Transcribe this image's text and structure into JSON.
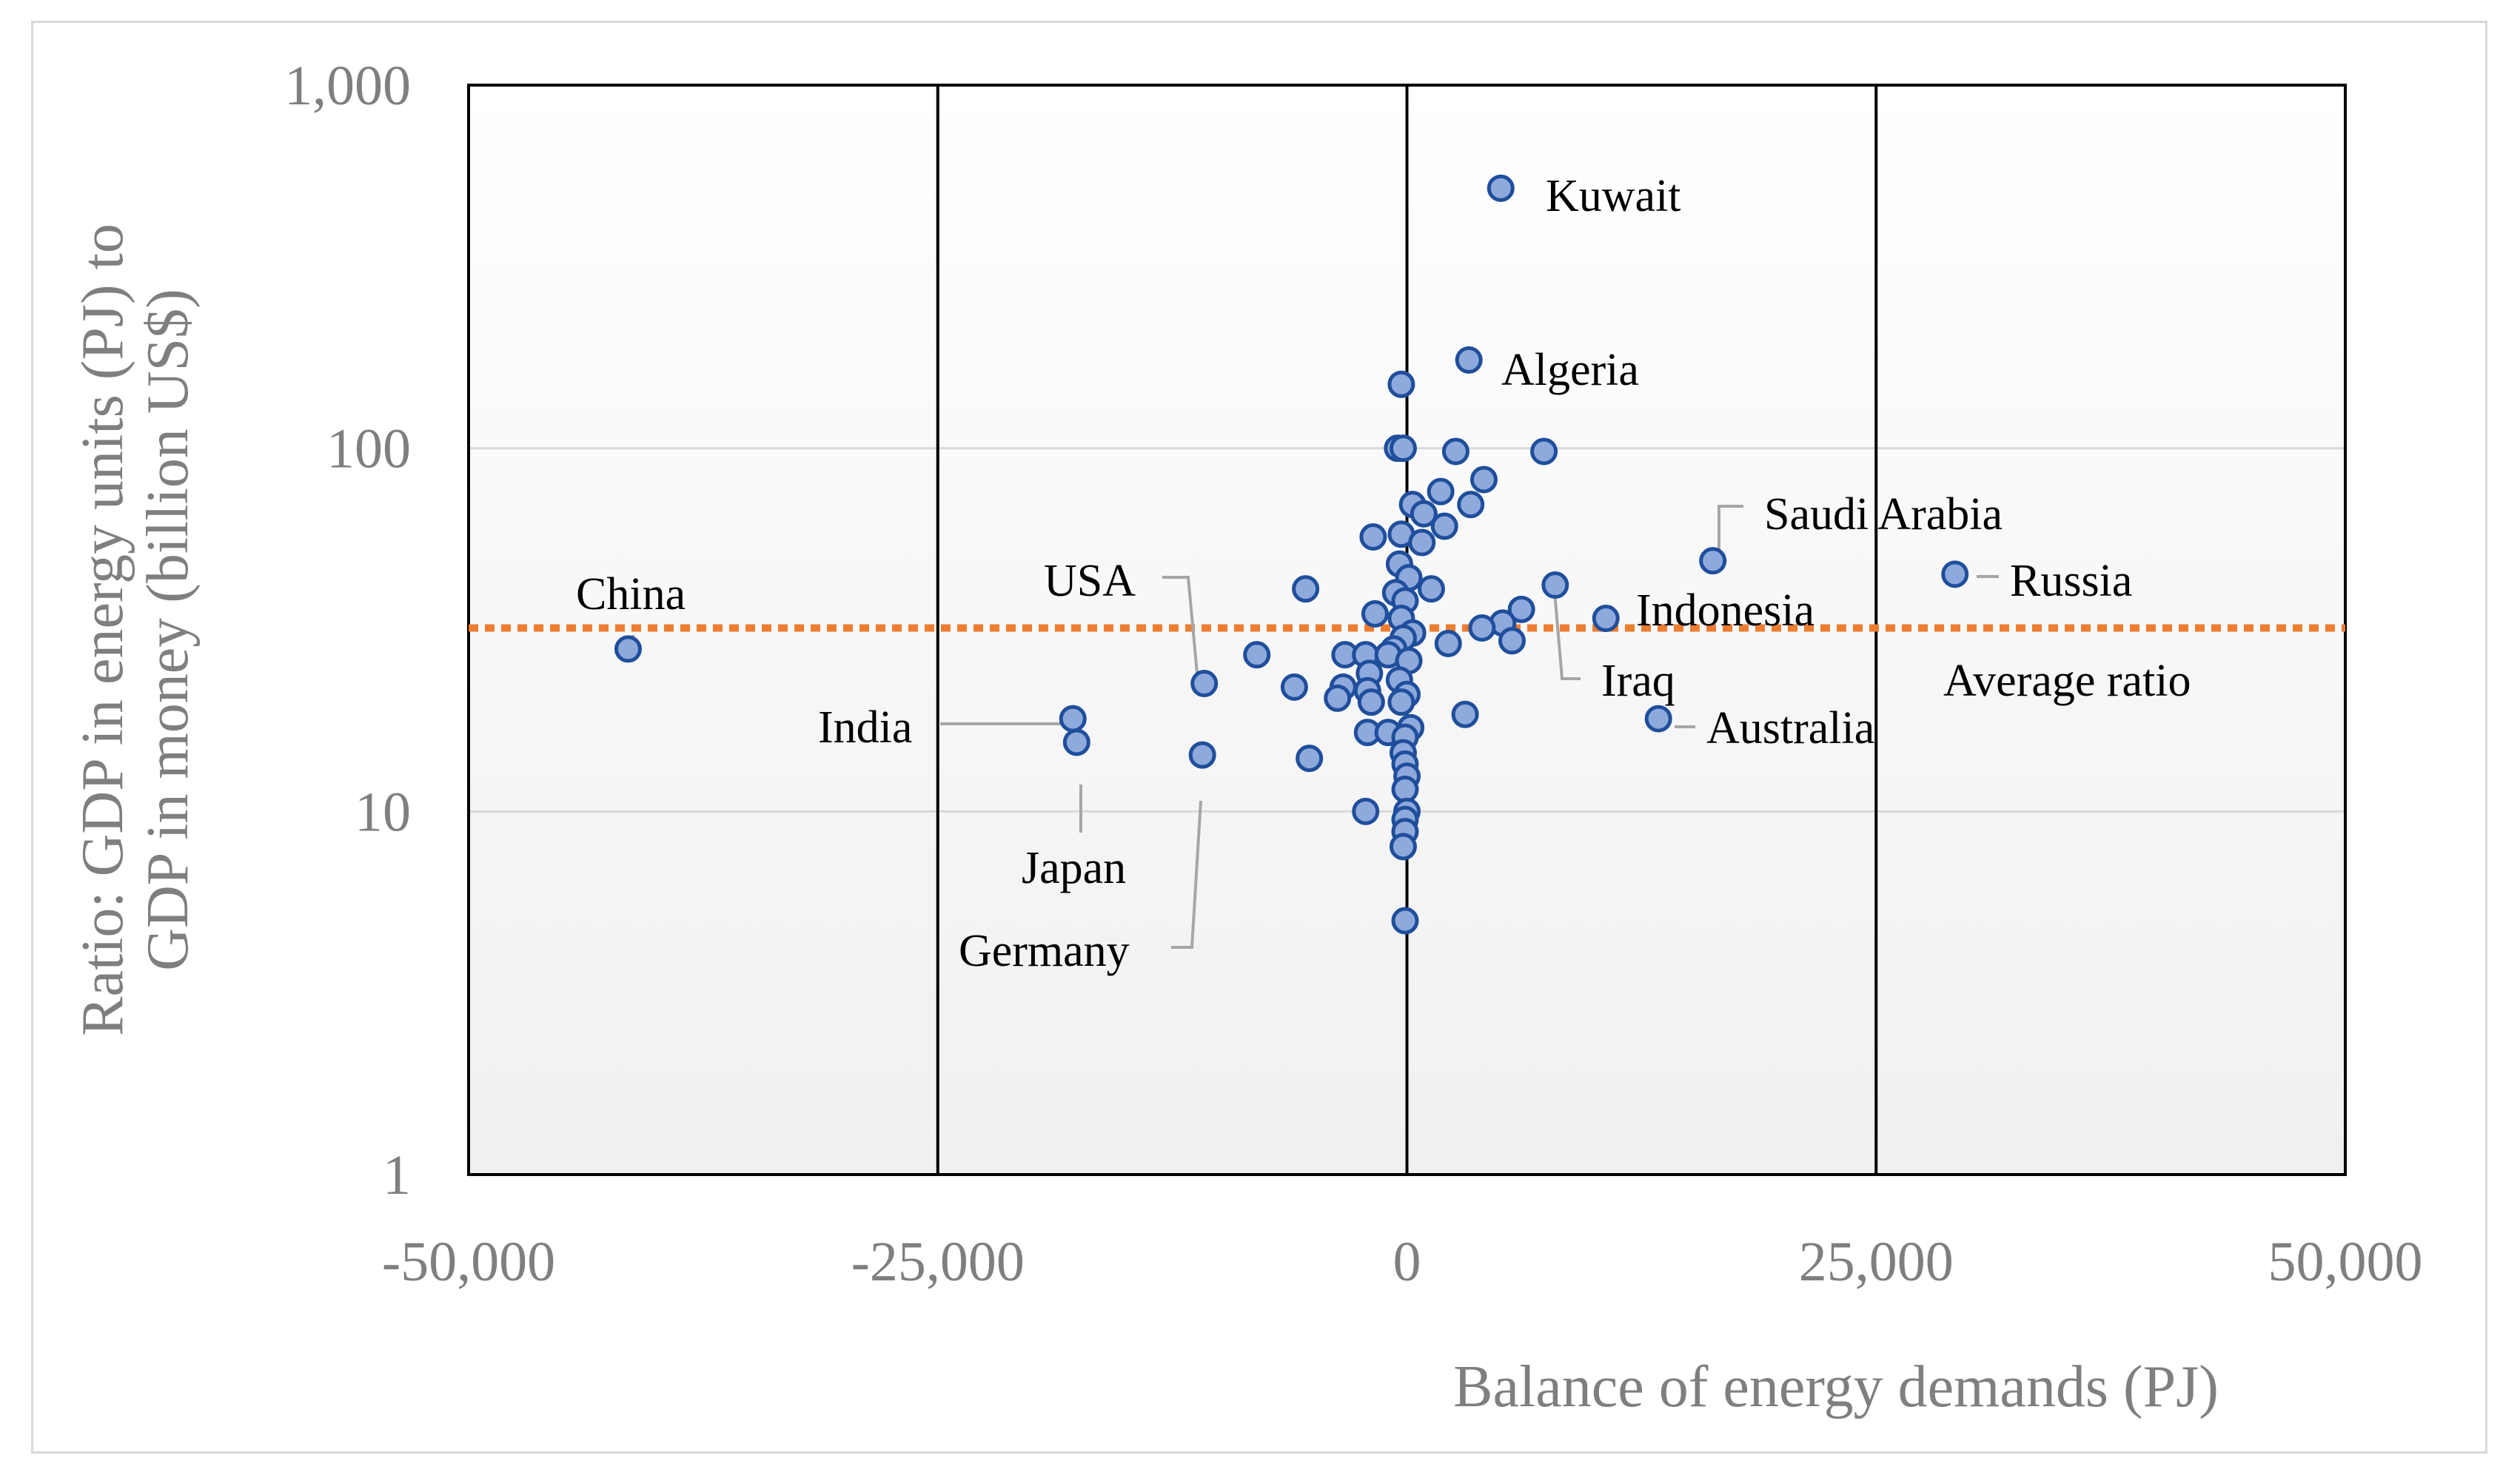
{
  "chart_data": {
    "type": "scatter",
    "title": "",
    "xlabel": "Balance of energy demands (PJ)",
    "ylabel_lines": [
      "Ratio: GDP in energy units (PJ) to",
      "GDP in money (billion US$)"
    ],
    "xlim": [
      -50000,
      50000
    ],
    "ylim": [
      1,
      1000
    ],
    "y_scale": "log",
    "x_ticks": [
      -50000,
      -25000,
      0,
      25000,
      50000
    ],
    "x_tick_labels": [
      "-50,000",
      "-25,000",
      "0",
      "25,000",
      "50,000"
    ],
    "y_ticks": [
      1,
      10,
      100,
      1000
    ],
    "y_tick_labels": [
      "1",
      "10",
      "100",
      "1,000"
    ],
    "vertical_lines": [
      -25000,
      0,
      25000
    ],
    "grid": true,
    "legend": "none",
    "colors": {
      "marker_fill": "#8ea9db",
      "marker_edge": "#1f4e9c",
      "average_line": "#ed7d31",
      "vline": "#000000",
      "grid": "#d9d9d9",
      "tick_text": "#7f7f7f"
    },
    "average_ratio": {
      "value": 32,
      "label": "Average ratio"
    },
    "points": [
      {
        "x": -41500,
        "y": 28,
        "label": "China"
      },
      {
        "x": -17800,
        "y": 18,
        "label": "India"
      },
      {
        "x": -17600,
        "y": 15.5,
        "label": "Japan"
      },
      {
        "x": -10800,
        "y": 22.5,
        "label": "USA"
      },
      {
        "x": -10900,
        "y": 14.3,
        "label": "Germany"
      },
      {
        "x": 5000,
        "y": 520,
        "label": "Kuwait"
      },
      {
        "x": 3300,
        "y": 175,
        "label": "Algeria"
      },
      {
        "x": 16300,
        "y": 49,
        "label": "Saudi Arabia"
      },
      {
        "x": 29200,
        "y": 45,
        "label": "Russia"
      },
      {
        "x": 10600,
        "y": 34,
        "label": "Indonesia"
      },
      {
        "x": 7900,
        "y": 42,
        "label": "Iraq"
      },
      {
        "x": 13400,
        "y": 18,
        "label": "Australia"
      },
      {
        "x": -300,
        "y": 150
      },
      {
        "x": -500,
        "y": 100
      },
      {
        "x": -200,
        "y": 100
      },
      {
        "x": 2600,
        "y": 98
      },
      {
        "x": 7300,
        "y": 98
      },
      {
        "x": 4100,
        "y": 82
      },
      {
        "x": 1800,
        "y": 76
      },
      {
        "x": 300,
        "y": 70
      },
      {
        "x": 3400,
        "y": 70
      },
      {
        "x": 900,
        "y": 66
      },
      {
        "x": 2000,
        "y": 61
      },
      {
        "x": -300,
        "y": 58
      },
      {
        "x": -1800,
        "y": 57
      },
      {
        "x": 800,
        "y": 55
      },
      {
        "x": -400,
        "y": 48
      },
      {
        "x": 100,
        "y": 44
      },
      {
        "x": 1300,
        "y": 41
      },
      {
        "x": -5400,
        "y": 41
      },
      {
        "x": -600,
        "y": 40
      },
      {
        "x": -100,
        "y": 38
      },
      {
        "x": 6100,
        "y": 36
      },
      {
        "x": -1700,
        "y": 35
      },
      {
        "x": -300,
        "y": 34
      },
      {
        "x": 5100,
        "y": 33
      },
      {
        "x": 4000,
        "y": 32
      },
      {
        "x": 300,
        "y": 31
      },
      {
        "x": -200,
        "y": 30
      },
      {
        "x": 5600,
        "y": 29.5
      },
      {
        "x": 2200,
        "y": 29
      },
      {
        "x": -700,
        "y": 28
      },
      {
        "x": -8000,
        "y": 27
      },
      {
        "x": -3300,
        "y": 27
      },
      {
        "x": -2200,
        "y": 27
      },
      {
        "x": -1000,
        "y": 27
      },
      {
        "x": 100,
        "y": 26
      },
      {
        "x": -2000,
        "y": 24
      },
      {
        "x": -400,
        "y": 23
      },
      {
        "x": -6000,
        "y": 22
      },
      {
        "x": -3400,
        "y": 22
      },
      {
        "x": -2100,
        "y": 21.5
      },
      {
        "x": 0,
        "y": 21
      },
      {
        "x": -3700,
        "y": 20.5
      },
      {
        "x": -1900,
        "y": 20
      },
      {
        "x": -300,
        "y": 20
      },
      {
        "x": 3100,
        "y": 18.5
      },
      {
        "x": 200,
        "y": 17
      },
      {
        "x": -2100,
        "y": 16.5
      },
      {
        "x": -1000,
        "y": 16.5
      },
      {
        "x": -100,
        "y": 16
      },
      {
        "x": -200,
        "y": 14.5
      },
      {
        "x": -5200,
        "y": 14
      },
      {
        "x": -100,
        "y": 13.5
      },
      {
        "x": 0,
        "y": 12.5
      },
      {
        "x": -100,
        "y": 11.5
      },
      {
        "x": -2200,
        "y": 10
      },
      {
        "x": 0,
        "y": 10
      },
      {
        "x": -100,
        "y": 9.5
      },
      {
        "x": -100,
        "y": 8.8
      },
      {
        "x": -200,
        "y": 8
      },
      {
        "x": -100,
        "y": 5
      }
    ]
  }
}
